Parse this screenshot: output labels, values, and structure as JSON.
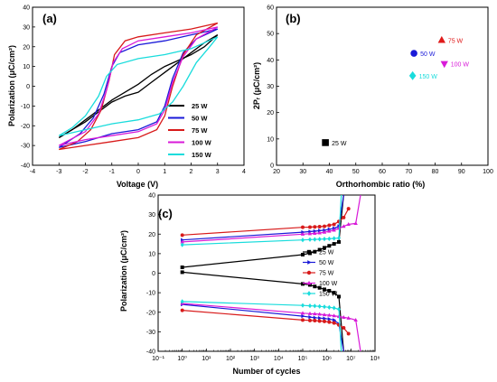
{
  "chart_data": [
    {
      "panel_label": "(a)",
      "type": "line",
      "xlabel": "Voltage (V)",
      "ylabel": "Polarization (μC/cm²)",
      "xlim": [
        -4,
        4
      ],
      "ylim": [
        -40,
        40
      ],
      "xticks": [
        -4,
        -3,
        -2,
        -1,
        0,
        1,
        2,
        3,
        4
      ],
      "yticks": [
        -40,
        -30,
        -20,
        -10,
        0,
        10,
        20,
        30,
        40
      ],
      "legend_position": "bottom-right",
      "series": [
        {
          "name": "25 W",
          "color": "#000000",
          "upper": [
            [
              -3,
              -26
            ],
            [
              -2.5,
              -22
            ],
            [
              -2,
              -18
            ],
            [
              -1.5,
              -13
            ],
            [
              -1,
              -8
            ],
            [
              -0.5,
              -5
            ],
            [
              0,
              -3
            ],
            [
              0.5,
              2
            ],
            [
              1,
              7
            ],
            [
              1.5,
              12
            ],
            [
              2,
              17
            ],
            [
              2.5,
              22
            ],
            [
              3,
              26
            ]
          ],
          "lower": [
            [
              3,
              26
            ],
            [
              2.5,
              20
            ],
            [
              2,
              16
            ],
            [
              1.5,
              13
            ],
            [
              1,
              10
            ],
            [
              0.5,
              6
            ],
            [
              0,
              1
            ],
            [
              -0.5,
              -3
            ],
            [
              -1,
              -7
            ],
            [
              -1.5,
              -12
            ],
            [
              -2,
              -17
            ],
            [
              -2.5,
              -22
            ],
            [
              -3,
              -26
            ]
          ]
        },
        {
          "name": "50 W",
          "color": "#1a1ad8",
          "upper": [
            [
              -3,
              -31
            ],
            [
              -2,
              -28
            ],
            [
              -1.5,
              -26
            ],
            [
              -1,
              -24
            ],
            [
              0,
              -22
            ],
            [
              0.7,
              -18
            ],
            [
              1,
              -10
            ],
            [
              1.3,
              4
            ],
            [
              1.7,
              17
            ],
            [
              2.2,
              24
            ],
            [
              3,
              29
            ]
          ],
          "lower": [
            [
              3,
              29
            ],
            [
              2,
              26
            ],
            [
              1,
              23
            ],
            [
              0,
              21
            ],
            [
              -0.7,
              17
            ],
            [
              -1,
              10
            ],
            [
              -1.3,
              -4
            ],
            [
              -1.7,
              -16
            ],
            [
              -2.2,
              -24
            ],
            [
              -3,
              -31
            ]
          ]
        },
        {
          "name": "75 W",
          "color": "#d81a1a",
          "upper": [
            [
              -3,
              -32
            ],
            [
              -2,
              -30
            ],
            [
              -1,
              -28
            ],
            [
              0,
              -26
            ],
            [
              0.7,
              -22
            ],
            [
              1,
              -15
            ],
            [
              1.3,
              0
            ],
            [
              1.7,
              16
            ],
            [
              2.2,
              26
            ],
            [
              3,
              32
            ]
          ],
          "lower": [
            [
              3,
              32
            ],
            [
              2,
              29
            ],
            [
              1,
              27
            ],
            [
              0,
              25
            ],
            [
              -0.5,
              23
            ],
            [
              -0.9,
              16
            ],
            [
              -1.1,
              3
            ],
            [
              -1.4,
              -12
            ],
            [
              -1.8,
              -22
            ],
            [
              -2.3,
              -28
            ],
            [
              -3,
              -32
            ]
          ]
        },
        {
          "name": "100 W",
          "color": "#d81ad8",
          "upper": [
            [
              -3,
              -30
            ],
            [
              -2,
              -27
            ],
            [
              -1,
              -25
            ],
            [
              0,
              -23
            ],
            [
              0.7,
              -19
            ],
            [
              1,
              -12
            ],
            [
              1.3,
              2
            ],
            [
              1.7,
              15
            ],
            [
              2.2,
              24
            ],
            [
              3,
              30
            ]
          ],
          "lower": [
            [
              3,
              30
            ],
            [
              2,
              27
            ],
            [
              1,
              25
            ],
            [
              0,
              23
            ],
            [
              -0.6,
              19
            ],
            [
              -0.95,
              12
            ],
            [
              -1.2,
              -2
            ],
            [
              -1.5,
              -14
            ],
            [
              -2,
              -23
            ],
            [
              -3,
              -30
            ]
          ]
        },
        {
          "name": "150 W",
          "color": "#19dcdc",
          "upper": [
            [
              -3,
              -25
            ],
            [
              -2,
              -22
            ],
            [
              -1,
              -19
            ],
            [
              0,
              -17
            ],
            [
              0.8,
              -14
            ],
            [
              1.3,
              -8
            ],
            [
              1.7,
              0
            ],
            [
              2.2,
              12
            ],
            [
              2.7,
              20
            ],
            [
              3,
              25
            ]
          ],
          "lower": [
            [
              3,
              25
            ],
            [
              2,
              19
            ],
            [
              1,
              16
            ],
            [
              0,
              14
            ],
            [
              -0.8,
              11
            ],
            [
              -1.2,
              5
            ],
            [
              -1.5,
              -5
            ],
            [
              -2,
              -15
            ],
            [
              -2.5,
              -21
            ],
            [
              -3,
              -25
            ]
          ]
        }
      ]
    },
    {
      "panel_label": "(b)",
      "type": "scatter",
      "xlabel": "Orthorhombic ratio (%)",
      "ylabel": "2Pᵣ (μC/cm²)",
      "xlim": [
        20,
        100
      ],
      "ylim": [
        0,
        60
      ],
      "xticks": [
        20,
        30,
        40,
        50,
        60,
        70,
        80,
        90,
        100
      ],
      "yticks": [
        0,
        10,
        20,
        30,
        40,
        50,
        60
      ],
      "points": [
        {
          "label": "25 W",
          "x": 38.5,
          "y": 8.6,
          "color": "#000000",
          "marker": "square"
        },
        {
          "label": "50 W",
          "x": 72,
          "y": 42.5,
          "color": "#1a1ad8",
          "marker": "circle"
        },
        {
          "label": "75 W",
          "x": 82.5,
          "y": 47.5,
          "color": "#e01a1a",
          "marker": "triangle-up"
        },
        {
          "label": "100 W",
          "x": 83.5,
          "y": 38.5,
          "color": "#d81ad8",
          "marker": "triangle-down"
        },
        {
          "label": "150 W",
          "x": 71.5,
          "y": 34,
          "color": "#19dcdc",
          "marker": "diamond"
        }
      ]
    },
    {
      "panel_label": "(c)",
      "type": "line",
      "xlabel": "Number of cycles",
      "ylabel": "Polarization (μC/cm²)",
      "xscale": "log",
      "xlim": [
        -1,
        8
      ],
      "ylim": [
        -40,
        40
      ],
      "xtick_labels": [
        "10⁻¹",
        "10⁰",
        "10¹",
        "10²",
        "10³",
        "10⁴",
        "10⁵",
        "10⁶",
        "10⁷",
        "10⁸"
      ],
      "yticks": [
        -40,
        -30,
        -20,
        -10,
        0,
        10,
        20,
        30,
        40
      ],
      "legend_position": "right",
      "series": [
        {
          "name": "25 W",
          "color": "#000000",
          "marker": "square",
          "positive": [
            [
              0,
              3
            ],
            [
              5,
              9.5
            ],
            [
              5.3,
              10.2
            ],
            [
              5.5,
              11
            ],
            [
              5.7,
              12
            ],
            [
              5.9,
              13
            ],
            [
              6.1,
              14
            ],
            [
              6.3,
              15
            ],
            [
              6.5,
              16
            ],
            [
              6.7,
              40
            ]
          ],
          "negative": [
            [
              0,
              0.5
            ],
            [
              5,
              -5.5
            ],
            [
              5.3,
              -6
            ],
            [
              5.5,
              -6.8
            ],
            [
              5.7,
              -7.5
            ],
            [
              5.9,
              -8.3
            ],
            [
              6.1,
              -9
            ],
            [
              6.3,
              -10
            ],
            [
              6.5,
              -12
            ],
            [
              6.7,
              -40
            ]
          ]
        },
        {
          "name": "50 W",
          "color": "#1a1ad8",
          "marker": "triangle-right",
          "positive": [
            [
              0,
              17
            ],
            [
              5,
              21
            ],
            [
              5.3,
              21.3
            ],
            [
              5.5,
              21.5
            ],
            [
              5.7,
              21.8
            ],
            [
              5.9,
              22
            ],
            [
              6.1,
              22.5
            ],
            [
              6.3,
              23
            ],
            [
              6.5,
              24
            ],
            [
              6.7,
              40
            ]
          ],
          "negative": [
            [
              0,
              -16
            ],
            [
              5,
              -22
            ],
            [
              5.3,
              -22.5
            ],
            [
              5.5,
              -22.8
            ],
            [
              5.7,
              -23
            ],
            [
              5.9,
              -23.2
            ],
            [
              6.1,
              -23.5
            ],
            [
              6.3,
              -24
            ],
            [
              6.5,
              -26
            ],
            [
              6.7,
              -40
            ]
          ]
        },
        {
          "name": "75 W",
          "color": "#d81a1a",
          "marker": "circle",
          "positive": [
            [
              0,
              19.5
            ],
            [
              5,
              23.5
            ],
            [
              5.3,
              23.6
            ],
            [
              5.5,
              23.7
            ],
            [
              5.7,
              23.8
            ],
            [
              5.9,
              24
            ],
            [
              6.1,
              24.5
            ],
            [
              6.3,
              25
            ],
            [
              6.5,
              26.5
            ],
            [
              6.7,
              28.5
            ],
            [
              6.9,
              33
            ]
          ],
          "negative": [
            [
              0,
              -19
            ],
            [
              5,
              -24
            ],
            [
              5.3,
              -24.2
            ],
            [
              5.5,
              -24.3
            ],
            [
              5.7,
              -24.5
            ],
            [
              5.9,
              -24.7
            ],
            [
              6.1,
              -25
            ],
            [
              6.3,
              -25.5
            ],
            [
              6.5,
              -26.5
            ],
            [
              6.7,
              -28
            ],
            [
              6.9,
              -31
            ]
          ]
        },
        {
          "name": "100 W",
          "color": "#d81ad8",
          "marker": "triangle-up",
          "positive": [
            [
              0,
              16
            ],
            [
              5,
              20
            ],
            [
              5.3,
              20.2
            ],
            [
              5.5,
              20.4
            ],
            [
              5.7,
              20.6
            ],
            [
              5.9,
              21
            ],
            [
              6.1,
              21.5
            ],
            [
              6.3,
              22
            ],
            [
              6.5,
              23
            ],
            [
              6.7,
              24
            ],
            [
              6.9,
              25
            ],
            [
              7.2,
              25.5
            ],
            [
              7.4,
              40
            ]
          ],
          "negative": [
            [
              0,
              -15.5
            ],
            [
              5,
              -20.5
            ],
            [
              5.3,
              -20.7
            ],
            [
              5.5,
              -20.8
            ],
            [
              5.7,
              -21
            ],
            [
              5.9,
              -21.3
            ],
            [
              6.1,
              -21.5
            ],
            [
              6.3,
              -21.8
            ],
            [
              6.5,
              -22.2
            ],
            [
              6.7,
              -22.6
            ],
            [
              6.9,
              -23
            ],
            [
              7.2,
              -24
            ],
            [
              7.4,
              -40
            ]
          ]
        },
        {
          "name": "150 W",
          "color": "#19dcdc",
          "marker": "diamond",
          "positive": [
            [
              0,
              14.5
            ],
            [
              5,
              17
            ],
            [
              5.3,
              17.2
            ],
            [
              5.5,
              17.3
            ],
            [
              5.7,
              17.4
            ],
            [
              5.9,
              17.5
            ],
            [
              6.1,
              17.6
            ],
            [
              6.3,
              17.8
            ],
            [
              6.5,
              18
            ],
            [
              6.6,
              40
            ]
          ],
          "negative": [
            [
              0,
              -14.5
            ],
            [
              5,
              -16.5
            ],
            [
              5.3,
              -16.7
            ],
            [
              5.5,
              -16.8
            ],
            [
              5.7,
              -17
            ],
            [
              5.9,
              -17.2
            ],
            [
              6.1,
              -17.5
            ],
            [
              6.3,
              -17.8
            ],
            [
              6.5,
              -18.5
            ],
            [
              6.6,
              -40
            ]
          ]
        }
      ]
    }
  ]
}
